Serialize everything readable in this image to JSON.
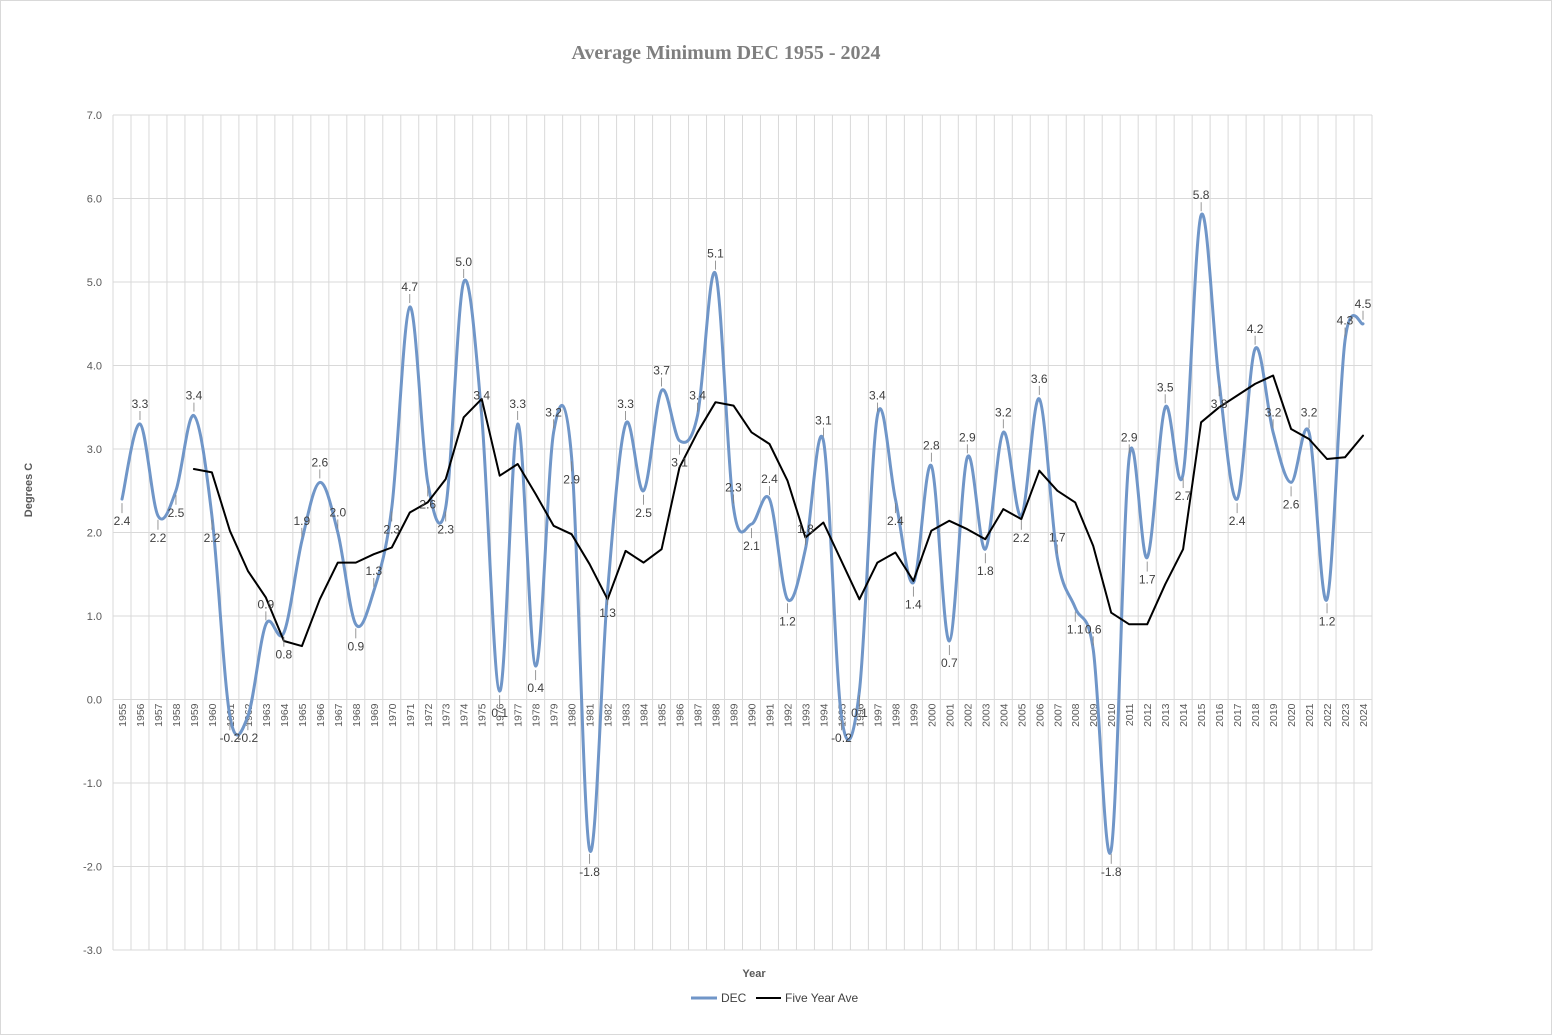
{
  "chart_data": {
    "type": "line",
    "title": "Average Minimum DEC 1955 - 2024",
    "xlabel": "Year",
    "ylabel": "Degrees C",
    "ylim": [
      -3,
      7
    ],
    "ytick_step": 1,
    "ytick_labels": [
      "-3.0",
      "-2.0",
      "-1.0",
      "0.0",
      "1.0",
      "2.0",
      "3.0",
      "4.0",
      "5.0",
      "6.0",
      "7.0"
    ],
    "grid": true,
    "legend_position": "bottom",
    "x": [
      1955,
      1956,
      1957,
      1958,
      1959,
      1960,
      1961,
      1962,
      1963,
      1964,
      1965,
      1966,
      1967,
      1968,
      1969,
      1970,
      1971,
      1972,
      1973,
      1974,
      1975,
      1976,
      1977,
      1978,
      1979,
      1980,
      1981,
      1982,
      1983,
      1984,
      1985,
      1986,
      1987,
      1988,
      1989,
      1990,
      1991,
      1992,
      1993,
      1994,
      1995,
      1996,
      1997,
      1998,
      1999,
      2000,
      2001,
      2002,
      2003,
      2004,
      2005,
      2006,
      2007,
      2008,
      2009,
      2010,
      2011,
      2012,
      2013,
      2014,
      2015,
      2016,
      2017,
      2018,
      2019,
      2020,
      2021,
      2022,
      2023,
      2024
    ],
    "series": [
      {
        "name": "DEC",
        "color": "#7096c8",
        "smooth": true,
        "values": [
          2.4,
          3.3,
          2.2,
          2.5,
          3.4,
          2.2,
          -0.2,
          -0.2,
          0.9,
          0.8,
          1.9,
          2.6,
          2.0,
          0.9,
          1.3,
          2.3,
          4.7,
          2.6,
          2.3,
          5.0,
          3.4,
          0.1,
          3.3,
          0.4,
          3.2,
          2.9,
          -1.8,
          1.3,
          3.3,
          2.5,
          3.7,
          3.1,
          3.4,
          5.1,
          2.3,
          2.1,
          2.4,
          1.2,
          1.8,
          3.1,
          -0.2,
          0.1,
          3.4,
          2.4,
          1.4,
          2.8,
          0.7,
          2.9,
          1.8,
          3.2,
          2.2,
          3.6,
          1.7,
          1.1,
          0.6,
          -1.8,
          2.9,
          1.7,
          3.5,
          2.7,
          5.8,
          3.8,
          2.4,
          4.2,
          3.2,
          2.6,
          3.2,
          1.2,
          4.3,
          4.5
        ],
        "labels": [
          "2.4",
          "3.3",
          "2.2",
          "2.5",
          "3.4",
          "2.2",
          "-0.2",
          "-0.2",
          "0.9",
          "0.8",
          "1.9",
          "2.6",
          "2.0",
          "0.9",
          "1.3",
          "2.3",
          "4.7",
          "2.6",
          "2.3",
          "5.0",
          "3.4",
          "0.1",
          "3.3",
          "0.4",
          "3.2",
          "2.9",
          "-1.8",
          "1.3",
          "3.3",
          "2.5",
          "3.7",
          "3.1",
          "3.4",
          "5.1",
          "2.3",
          "2.1",
          "2.4",
          "1.2",
          "1.8",
          "3.1",
          "-0.2",
          "0.1",
          "3.4",
          "2.4",
          "1.4",
          "2.8",
          "0.7",
          "2.9",
          "1.8",
          "3.2",
          "2.2",
          "3.6",
          "1.7",
          "1.1",
          "0.6",
          "-1.8",
          "2.9",
          "1.7",
          "3.5",
          "2.7",
          "5.8",
          "3.8",
          "2.4",
          "4.2",
          "3.2",
          "2.6",
          "3.2",
          "1.2",
          "4.3",
          "4.5"
        ]
      },
      {
        "name": "Five Year Ave",
        "color": "#000000",
        "smooth": false,
        "values": [
          null,
          null,
          null,
          null,
          2.76,
          2.72,
          2.02,
          1.54,
          1.22,
          0.7,
          0.64,
          1.2,
          1.64,
          1.64,
          1.74,
          1.82,
          2.24,
          2.36,
          2.64,
          3.38,
          3.6,
          2.68,
          2.82,
          2.46,
          2.08,
          1.98,
          1.62,
          1.2,
          1.78,
          1.64,
          1.8,
          2.78,
          3.2,
          3.56,
          3.52,
          3.2,
          3.06,
          2.62,
          1.94,
          2.12,
          1.66,
          1.2,
          1.64,
          1.76,
          1.42,
          2.02,
          2.14,
          2.04,
          1.92,
          2.28,
          2.16,
          2.74,
          2.5,
          2.36,
          1.84,
          1.04,
          0.9,
          0.9,
          1.38,
          1.8,
          3.32,
          3.5,
          3.64,
          3.78,
          3.88,
          3.24,
          3.12,
          2.88,
          2.9,
          3.16
        ]
      }
    ]
  }
}
